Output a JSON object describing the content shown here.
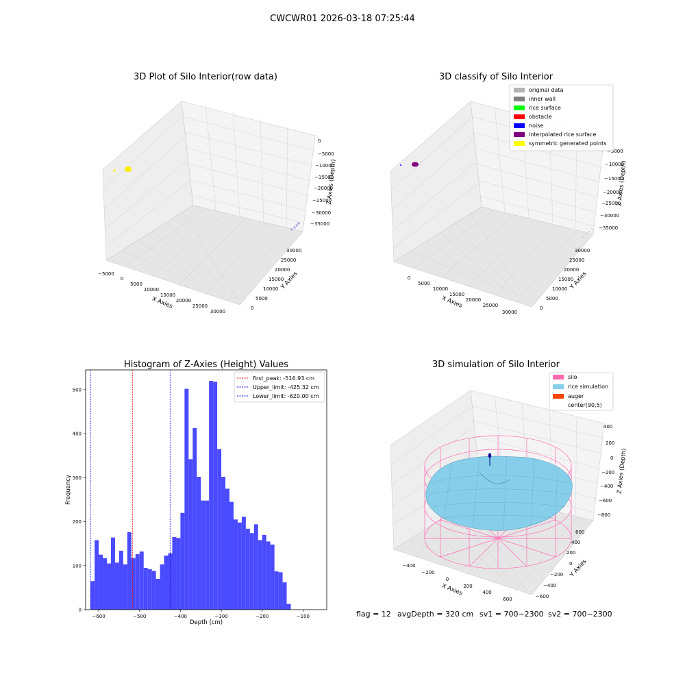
{
  "figure": {
    "suptitle": "CWCWR01 2026-03-18 07:25:44",
    "footer": {
      "flag": "flag = 12",
      "avg_depth": "avgDepth = 320 cm",
      "sv1": "sv1 = 700~2300",
      "sv2": "sv2 = 700~2300"
    }
  },
  "plots": {
    "raw3d": {
      "title": "3D Plot of Silo Interior(row data)",
      "xlabel": "X Axies",
      "ylabel": "Y Axies",
      "zlabel": "Z Axies (Depth)",
      "xticks": [
        "−5000",
        "0",
        "5000",
        "10000",
        "15000",
        "20000",
        "25000",
        "30000"
      ],
      "yticks": [
        "0",
        "5000",
        "10000",
        "15000",
        "20000",
        "25000",
        "30000"
      ],
      "zticks": [
        "0",
        "−5000",
        "−10000",
        "−15000",
        "−20000",
        "−25000",
        "−30000",
        "−35000"
      ],
      "colors": {
        "near_cluster": "#ffee00",
        "far_points": "#b39ddb"
      }
    },
    "classify3d": {
      "title": "3D classify of Silo Interior",
      "xlabel": "X Axies",
      "ylabel": "Y Axies",
      "zlabel": "Z Axies (Depth)",
      "xticks": [
        "0",
        "5000",
        "10000",
        "15000",
        "20000",
        "25000",
        "30000"
      ],
      "yticks": [
        "0",
        "5000",
        "10000",
        "15000",
        "20000",
        "25000",
        "30000"
      ],
      "zticks": [
        "0",
        "−5000",
        "−10000",
        "−15000",
        "−20000",
        "−25000",
        "−30000",
        "−35000"
      ],
      "legend": [
        {
          "label": "original data",
          "color": "#b3b3b3"
        },
        {
          "label": "inner wall",
          "color": "#808080"
        },
        {
          "label": "rice surface",
          "color": "#00ff00"
        },
        {
          "label": "obstacle",
          "color": "#ff0000"
        },
        {
          "label": "noise",
          "color": "#0000ff"
        },
        {
          "label": "interpolated rice surface",
          "color": "#800080"
        },
        {
          "label": "symmetric generated points",
          "color": "#ffff00"
        }
      ]
    },
    "histogram": {
      "title": "Histogram of Z-Axies (Height) Values",
      "xlabel": "Depth (cm)",
      "ylabel": "Frequency",
      "legend": [
        {
          "label": "first_peak: -516.93 cm",
          "color": "#ff0000"
        },
        {
          "label": "Upper_limit: -425.32 cm",
          "color": "#0000ff"
        },
        {
          "label": "Lower_limit: -620.00 cm",
          "color": "#0000ff"
        }
      ]
    },
    "sim3d": {
      "title": "3D simulation of Silo Interior",
      "xlabel": "X Axies",
      "ylabel": "Y Axies",
      "zlabel": "Z Axies (Depth)",
      "xticks": [
        "−400",
        "−200",
        "0",
        "200",
        "400",
        "600"
      ],
      "yticks": [
        "−600",
        "−400",
        "−200",
        "0",
        "200",
        "400",
        "600"
      ],
      "zticks": [
        "400",
        "200",
        "0",
        "−200",
        "−400",
        "−600",
        "−800"
      ],
      "legend": [
        {
          "label": "silo",
          "color": "#ff69b4"
        },
        {
          "label": "rice simulation",
          "color": "#87ceeb"
        },
        {
          "label": "auger",
          "color": "#ff4500"
        },
        {
          "label": "center(90,5)",
          "color": "none"
        }
      ],
      "colors": {
        "silo": "#ff69b4",
        "rice": "#87ceeb",
        "auger_marker": "#00008b"
      }
    }
  },
  "chart_data": [
    {
      "type": "scatter",
      "title": "3D Plot of Silo Interior(row data)",
      "xlabel": "X Axies",
      "ylabel": "Y Axies",
      "zlabel": "Z Axies (Depth)",
      "xlim": [
        -6000,
        32000
      ],
      "ylim": [
        0,
        32000
      ],
      "zlim": [
        -37000,
        1000
      ],
      "grid": true
    },
    {
      "type": "scatter",
      "title": "3D classify of Silo Interior",
      "xlabel": "X Axies",
      "ylabel": "Y Axies",
      "zlabel": "Z Axies (Depth)",
      "xlim": [
        -2000,
        32000
      ],
      "ylim": [
        0,
        32000
      ],
      "zlim": [
        -37000,
        1000
      ],
      "legend_position": "top-right",
      "grid": true
    },
    {
      "type": "bar",
      "title": "Histogram of Z-Axies (Height) Values",
      "xlabel": "Depth (cm)",
      "ylabel": "Frequency",
      "xlim": [
        -632,
        -42
      ],
      "ylim": [
        0,
        545
      ],
      "xticks": [
        -600,
        -500,
        -400,
        -300,
        -200,
        -100
      ],
      "yticks": [
        0,
        100,
        200,
        300,
        400,
        500
      ],
      "bin_start": -620,
      "bin_width": 10,
      "values": [
        65,
        158,
        125,
        117,
        105,
        164,
        107,
        134,
        103,
        176,
        117,
        126,
        132,
        95,
        92,
        88,
        70,
        103,
        123,
        128,
        165,
        163,
        220,
        502,
        342,
        413,
        302,
        248,
        248,
        520,
        518,
        365,
        302,
        275,
        245,
        205,
        198,
        211,
        184,
        174,
        194,
        158,
        170,
        155,
        148,
        87,
        85,
        62,
        13
      ],
      "vlines": [
        {
          "name": "first_peak",
          "x": -516.93,
          "color": "#ff0000"
        },
        {
          "name": "Upper_limit",
          "x": -425.32,
          "color": "#0000ff"
        },
        {
          "name": "Lower_limit",
          "x": -620.0,
          "color": "#0000ff"
        }
      ],
      "legend_position": "top-right",
      "grid": false
    },
    {
      "type": "scatter",
      "title": "3D simulation of Silo Interior",
      "xlabel": "X Axies",
      "ylabel": "Y Axies",
      "zlabel": "Z Axies (Depth)",
      "xlim": [
        -500,
        700
      ],
      "ylim": [
        -700,
        700
      ],
      "zlim": [
        -900,
        500
      ],
      "legend_position": "top-right",
      "grid": true
    }
  ]
}
